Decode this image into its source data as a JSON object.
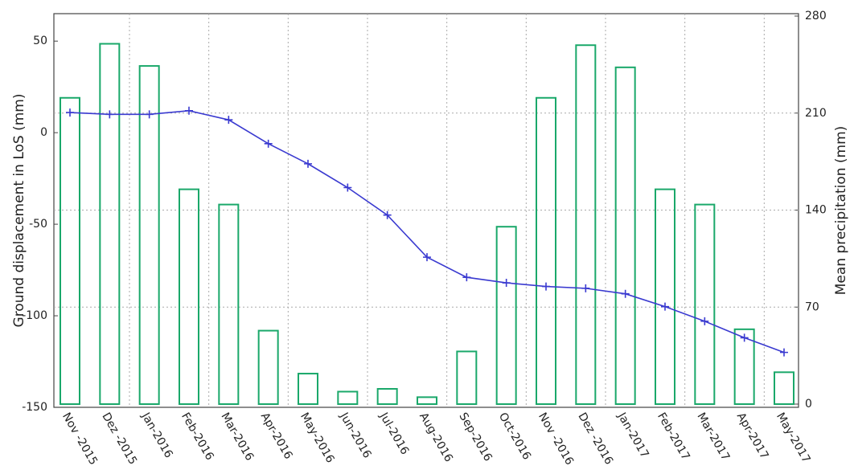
{
  "chart_data": {
    "type": "bar_line",
    "categories": [
      "Nov -2015",
      "Dez -2015",
      "Jan-2016",
      "Feb-2016",
      "Mar-2016",
      "Apr-2016",
      "May-2016",
      "Jun-2016",
      "Jul-2016",
      "Aug-2016",
      "Sep-2016",
      "Oct-2016",
      "Nov -2016",
      "Dez -2016",
      "Jan-2017",
      "Feb-2017",
      "Mar-2017",
      "Apr-2017",
      "May-2017"
    ],
    "y_label": "Ground displacement in LoS  (mm)",
    "y2_label": "Mean precipitation (mm)",
    "ylim": [
      -150,
      65
    ],
    "yticks": [
      -150,
      -100,
      -50,
      0,
      50
    ],
    "y2lim": [
      0,
      280
    ],
    "y2ticks": [
      0,
      70,
      140,
      210,
      280
    ],
    "grid": true,
    "series": [
      {
        "type": "bar",
        "axis": "y2",
        "color": "#1aa86a",
        "values": [
          221,
          260,
          244,
          155,
          144,
          53,
          22,
          9,
          11,
          5,
          38,
          128,
          221,
          259,
          243,
          155,
          144,
          54,
          23
        ]
      },
      {
        "type": "line",
        "axis": "y",
        "color": "#3a3ad0",
        "values": [
          11,
          10,
          10,
          12,
          7,
          -6,
          -17,
          -30,
          -45,
          -68,
          -79,
          -82,
          -84,
          -85,
          -88,
          -95,
          -103,
          -112,
          -120
        ]
      }
    ]
  }
}
